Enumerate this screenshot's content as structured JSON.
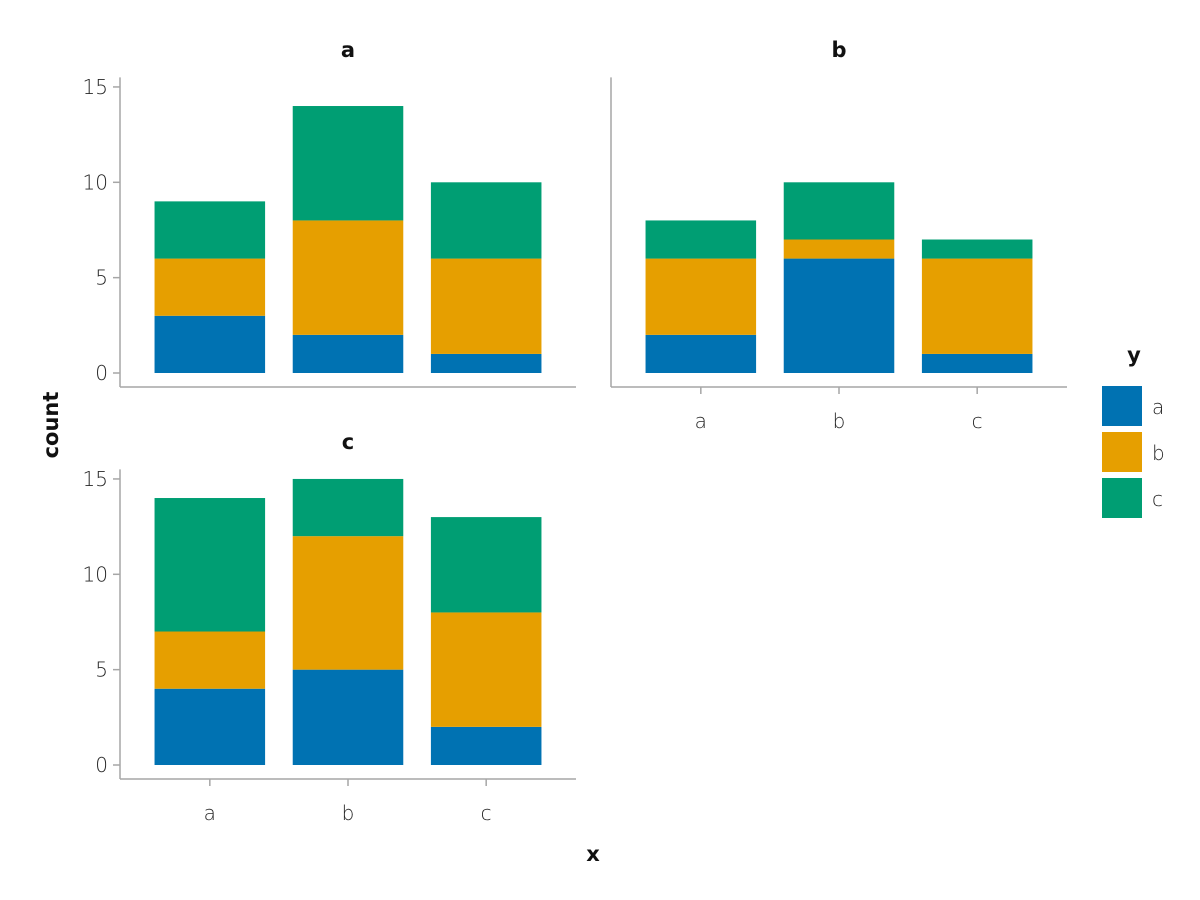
{
  "chart_data": {
    "type": "bar",
    "stacked": true,
    "xlabel": "x",
    "ylabel": "count",
    "x_categories": [
      "a",
      "b",
      "c"
    ],
    "y_ticks": [
      0,
      5,
      10,
      15
    ],
    "ylim": [
      0,
      15.5
    ],
    "grid": false,
    "legend": {
      "title": "y",
      "placement": "right",
      "entries": [
        {
          "label": "a",
          "color": "#0072b2"
        },
        {
          "label": "b",
          "color": "#e69f00"
        },
        {
          "label": "c",
          "color": "#009e73"
        }
      ]
    },
    "facets": [
      {
        "title": "a",
        "series": [
          {
            "name": "a",
            "values": [
              3,
              2,
              1
            ]
          },
          {
            "name": "b",
            "values": [
              3,
              6,
              5
            ]
          },
          {
            "name": "c",
            "values": [
              3,
              6,
              4
            ]
          }
        ]
      },
      {
        "title": "b",
        "series": [
          {
            "name": "a",
            "values": [
              2,
              6,
              1
            ]
          },
          {
            "name": "b",
            "values": [
              4,
              1,
              5
            ]
          },
          {
            "name": "c",
            "values": [
              2,
              3,
              1
            ]
          }
        ]
      },
      {
        "title": "c",
        "series": [
          {
            "name": "a",
            "values": [
              4,
              5,
              2
            ]
          },
          {
            "name": "b",
            "values": [
              3,
              7,
              6
            ]
          },
          {
            "name": "c",
            "values": [
              7,
              3,
              5
            ]
          }
        ]
      }
    ]
  }
}
